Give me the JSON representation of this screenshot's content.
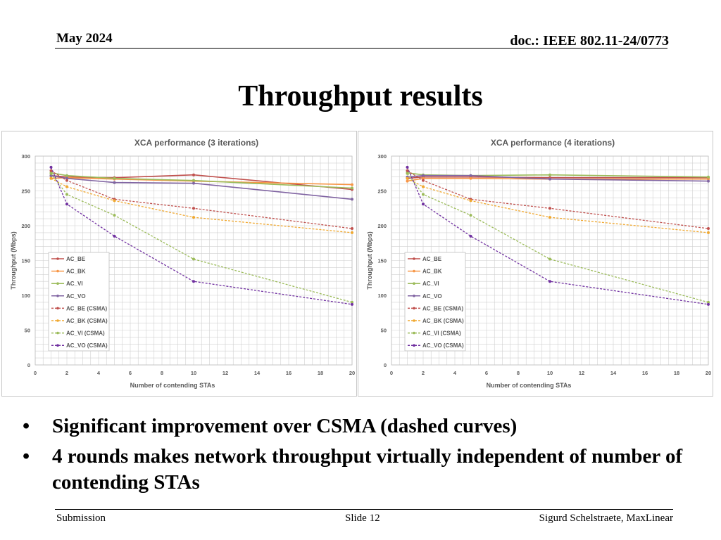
{
  "header": {
    "date": "May 2024",
    "doc": "doc.: IEEE 802.11-24/0773"
  },
  "slide_title": "Throughput results",
  "bullets": [
    "Significant improvement over CSMA (dashed curves)",
    "4 rounds makes network throughput virtually independent of number of contending STAs"
  ],
  "footer": {
    "left": "Submission",
    "center": "Slide 12",
    "right": "Sigurd Schelstraete, MaxLinear"
  },
  "chart_data": [
    {
      "type": "line",
      "title": "XCA performance (3 iterations)",
      "xlabel": "Number of contending STAs",
      "ylabel": "Throughput (Mbps)",
      "xlim": [
        0,
        20
      ],
      "ylim": [
        0,
        300
      ],
      "xticks": [
        0,
        2,
        4,
        6,
        8,
        10,
        12,
        14,
        16,
        18,
        20
      ],
      "yticks": [
        0,
        50,
        100,
        150,
        200,
        250,
        300
      ],
      "x": [
        1,
        2,
        5,
        10,
        20
      ],
      "grid": true,
      "legend_position": "left",
      "series": [
        {
          "name": "AC_BE",
          "color": "#c0504d",
          "dashed": false,
          "values": [
            272,
            270,
            269,
            273,
            252
          ]
        },
        {
          "name": "AC_BK",
          "color": "#f79646",
          "dashed": false,
          "values": [
            268,
            269,
            267,
            264,
            259
          ]
        },
        {
          "name": "AC_VI",
          "color": "#9bbb59",
          "dashed": false,
          "values": [
            276,
            272,
            268,
            265,
            254
          ]
        },
        {
          "name": "AC_VO",
          "color": "#8064a2",
          "dashed": false,
          "values": [
            272,
            268,
            262,
            261,
            238
          ]
        },
        {
          "name": "AC_BE (CSMA)",
          "color": "#c0504d",
          "dashed": true,
          "values": [
            279,
            265,
            238,
            225,
            196
          ]
        },
        {
          "name": "AC_BK (CSMA)",
          "color": "#f0a830",
          "dashed": true,
          "values": [
            268,
            256,
            236,
            212,
            190
          ]
        },
        {
          "name": "AC_VI (CSMA)",
          "color": "#9bbb59",
          "dashed": true,
          "values": [
            275,
            245,
            215,
            152,
            90
          ]
        },
        {
          "name": "AC_VO (CSMA)",
          "color": "#7030a0",
          "dashed": true,
          "values": [
            284,
            231,
            185,
            120,
            87
          ]
        }
      ]
    },
    {
      "type": "line",
      "title": "XCA performance (4 iterations)",
      "xlabel": "Number of contending STAs",
      "ylabel": "Throughput (Mbps)",
      "xlim": [
        0,
        20
      ],
      "ylim": [
        0,
        300
      ],
      "xticks": [
        0,
        2,
        4,
        6,
        8,
        10,
        12,
        14,
        16,
        18,
        20
      ],
      "yticks": [
        0,
        50,
        100,
        150,
        200,
        250,
        300
      ],
      "x": [
        1,
        2,
        5,
        10,
        20
      ],
      "grid": true,
      "legend_position": "left",
      "series": [
        {
          "name": "AC_BE",
          "color": "#c0504d",
          "dashed": false,
          "values": [
            268,
            270,
            270,
            269,
            269
          ]
        },
        {
          "name": "AC_BK",
          "color": "#f79646",
          "dashed": false,
          "values": [
            264,
            268,
            268,
            267,
            267
          ]
        },
        {
          "name": "AC_VI",
          "color": "#9bbb59",
          "dashed": false,
          "values": [
            276,
            273,
            272,
            273,
            270
          ]
        },
        {
          "name": "AC_VO",
          "color": "#8064a2",
          "dashed": false,
          "values": [
            270,
            272,
            272,
            267,
            264
          ]
        },
        {
          "name": "AC_BE (CSMA)",
          "color": "#c0504d",
          "dashed": true,
          "values": [
            279,
            265,
            238,
            225,
            196
          ]
        },
        {
          "name": "AC_BK (CSMA)",
          "color": "#f0a830",
          "dashed": true,
          "values": [
            268,
            256,
            236,
            212,
            190
          ]
        },
        {
          "name": "AC_VI (CSMA)",
          "color": "#9bbb59",
          "dashed": true,
          "values": [
            275,
            245,
            215,
            152,
            90
          ]
        },
        {
          "name": "AC_VO (CSMA)",
          "color": "#7030a0",
          "dashed": true,
          "values": [
            284,
            231,
            185,
            120,
            87
          ]
        }
      ]
    }
  ]
}
